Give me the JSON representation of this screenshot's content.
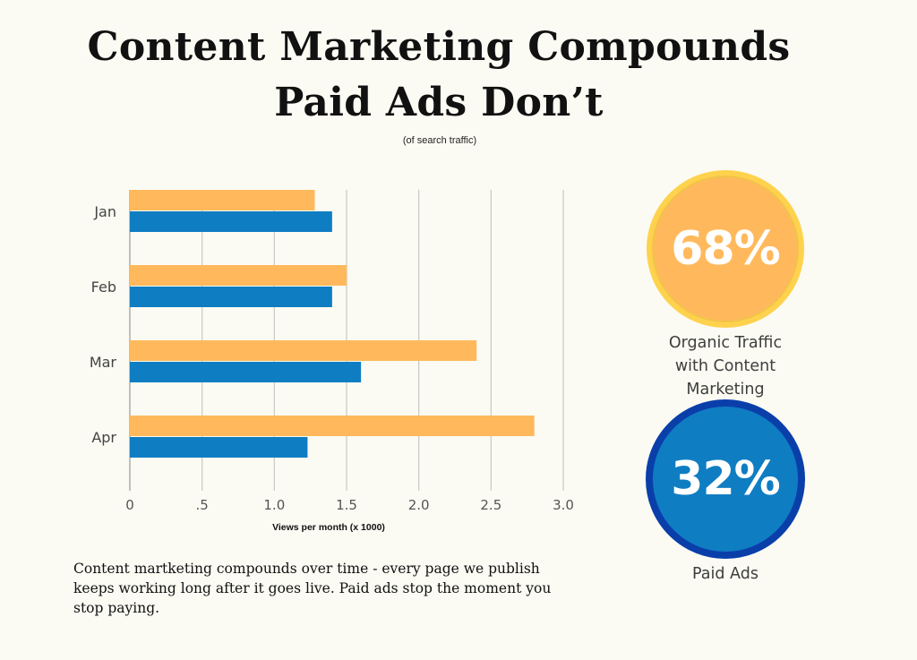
{
  "header": {
    "title_line1": "Content Marketing Compounds",
    "title_line2": "Paid Ads Don’t",
    "subtitle": "(of search traffic)"
  },
  "chart_data": {
    "type": "bar",
    "orientation": "horizontal",
    "categories": [
      "Jan",
      "Feb",
      "Mar",
      "Apr"
    ],
    "series": [
      {
        "color": "#ffb95c",
        "values": [
          1.28,
          1.5,
          2.4,
          2.8
        ]
      },
      {
        "color": "#0f7dc2",
        "values": [
          1.4,
          1.4,
          1.6,
          1.23
        ]
      }
    ],
    "x_ticks": [
      "0",
      ".5",
      "1.0",
      "1.5",
      "2.0",
      "2.5",
      "3.0"
    ],
    "x_tick_values": [
      0,
      0.5,
      1.0,
      1.5,
      2.0,
      2.5,
      3.0
    ],
    "xlim": [
      0,
      3.0
    ],
    "xlabel": "Views per month (x 1000)",
    "ylabel": "",
    "grid": true
  },
  "stats": {
    "organic": {
      "value": "68%",
      "label": [
        "Organic Traffic",
        "with Content",
        "Marketing"
      ],
      "color": "#ffb95c",
      "ring_color": "#ffd24d"
    },
    "paid": {
      "value": "32%",
      "label": [
        "Paid Ads"
      ],
      "color": "#0f7dc2",
      "ring_color": "#0a3faa"
    }
  },
  "description": "Content martketing compounds over time - every page we publish keeps working long after it goes live. Paid ads stop the moment you stop paying."
}
